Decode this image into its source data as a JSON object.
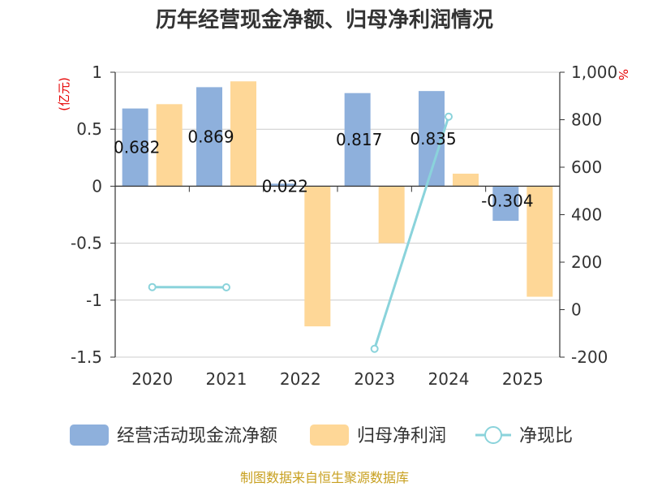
{
  "chart_data": {
    "type": "bar",
    "title": "历年经营现金净额、归母净利润情况",
    "categories": [
      "2020",
      "2021",
      "2022",
      "2023",
      "2024",
      "2025"
    ],
    "y_left": {
      "unit": "(亿元)",
      "ylim": [
        -1.5,
        1
      ],
      "ticks": [
        1,
        0.5,
        0,
        -0.5,
        -1,
        -1.5
      ],
      "tick_labels": [
        "1",
        "0.5",
        "0",
        "-0.5",
        "-1",
        "-1.5"
      ]
    },
    "y_right": {
      "unit": "%",
      "ylim": [
        -200,
        1000
      ],
      "ticks": [
        1000,
        800,
        600,
        400,
        200,
        0,
        -200
      ],
      "tick_labels": [
        "1,000",
        "800",
        "600",
        "400",
        "200",
        "0",
        "-200"
      ]
    },
    "series": [
      {
        "name": "经营活动现金流净额",
        "type": "bar",
        "axis": "left",
        "color": "#8eb0dc",
        "values": [
          0.682,
          0.869,
          0.022,
          0.817,
          0.835,
          -0.304
        ],
        "labels": [
          "0.682",
          "0.869",
          "0.022",
          "0.817",
          "0.835",
          "-0.304"
        ]
      },
      {
        "name": "归母净利润",
        "type": "bar",
        "axis": "left",
        "color": "#fed797",
        "values": [
          0.72,
          0.92,
          -1.23,
          -0.5,
          0.11,
          -0.97
        ]
      },
      {
        "name": "净现比",
        "type": "line",
        "axis": "right",
        "color": "#8ad3db",
        "values": [
          95,
          94,
          null,
          -165,
          813,
          null
        ]
      }
    ],
    "footer": "制图数据来自恒生聚源数据库"
  }
}
